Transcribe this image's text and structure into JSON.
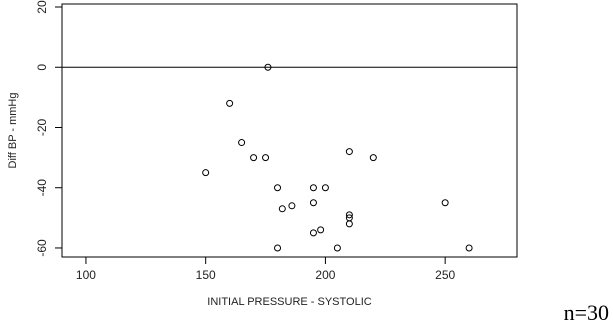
{
  "chart_data": {
    "type": "scatter",
    "title": "",
    "xlabel": "INITIAL PRESSURE - SYSTOLIC",
    "ylabel": "Diff BP - mmHg",
    "xlim": [
      90,
      280
    ],
    "ylim": [
      -63,
      21
    ],
    "x_ticks": [
      100,
      150,
      200,
      250
    ],
    "y_ticks": [
      -60,
      -40,
      -20,
      0,
      20
    ],
    "reference_line": {
      "y": 0
    },
    "grid": false,
    "legend": "none",
    "points": [
      {
        "x": 150,
        "y": -35
      },
      {
        "x": 160,
        "y": -12
      },
      {
        "x": 165,
        "y": -25
      },
      {
        "x": 170,
        "y": -30
      },
      {
        "x": 175,
        "y": -30
      },
      {
        "x": 176,
        "y": 0
      },
      {
        "x": 180,
        "y": -40
      },
      {
        "x": 180,
        "y": -60
      },
      {
        "x": 182,
        "y": -47
      },
      {
        "x": 186,
        "y": -46
      },
      {
        "x": 195,
        "y": -40
      },
      {
        "x": 195,
        "y": -45
      },
      {
        "x": 195,
        "y": -55
      },
      {
        "x": 198,
        "y": -54
      },
      {
        "x": 200,
        "y": -40
      },
      {
        "x": 205,
        "y": -60
      },
      {
        "x": 210,
        "y": -28
      },
      {
        "x": 210,
        "y": -49
      },
      {
        "x": 210,
        "y": -50
      },
      {
        "x": 210,
        "y": -52
      },
      {
        "x": 220,
        "y": -30
      },
      {
        "x": 250,
        "y": -45
      },
      {
        "x": 260,
        "y": -60
      }
    ]
  },
  "annotation": {
    "sample_size": "n=30"
  },
  "colors": {
    "axis": "#000000",
    "points": "#000000"
  }
}
